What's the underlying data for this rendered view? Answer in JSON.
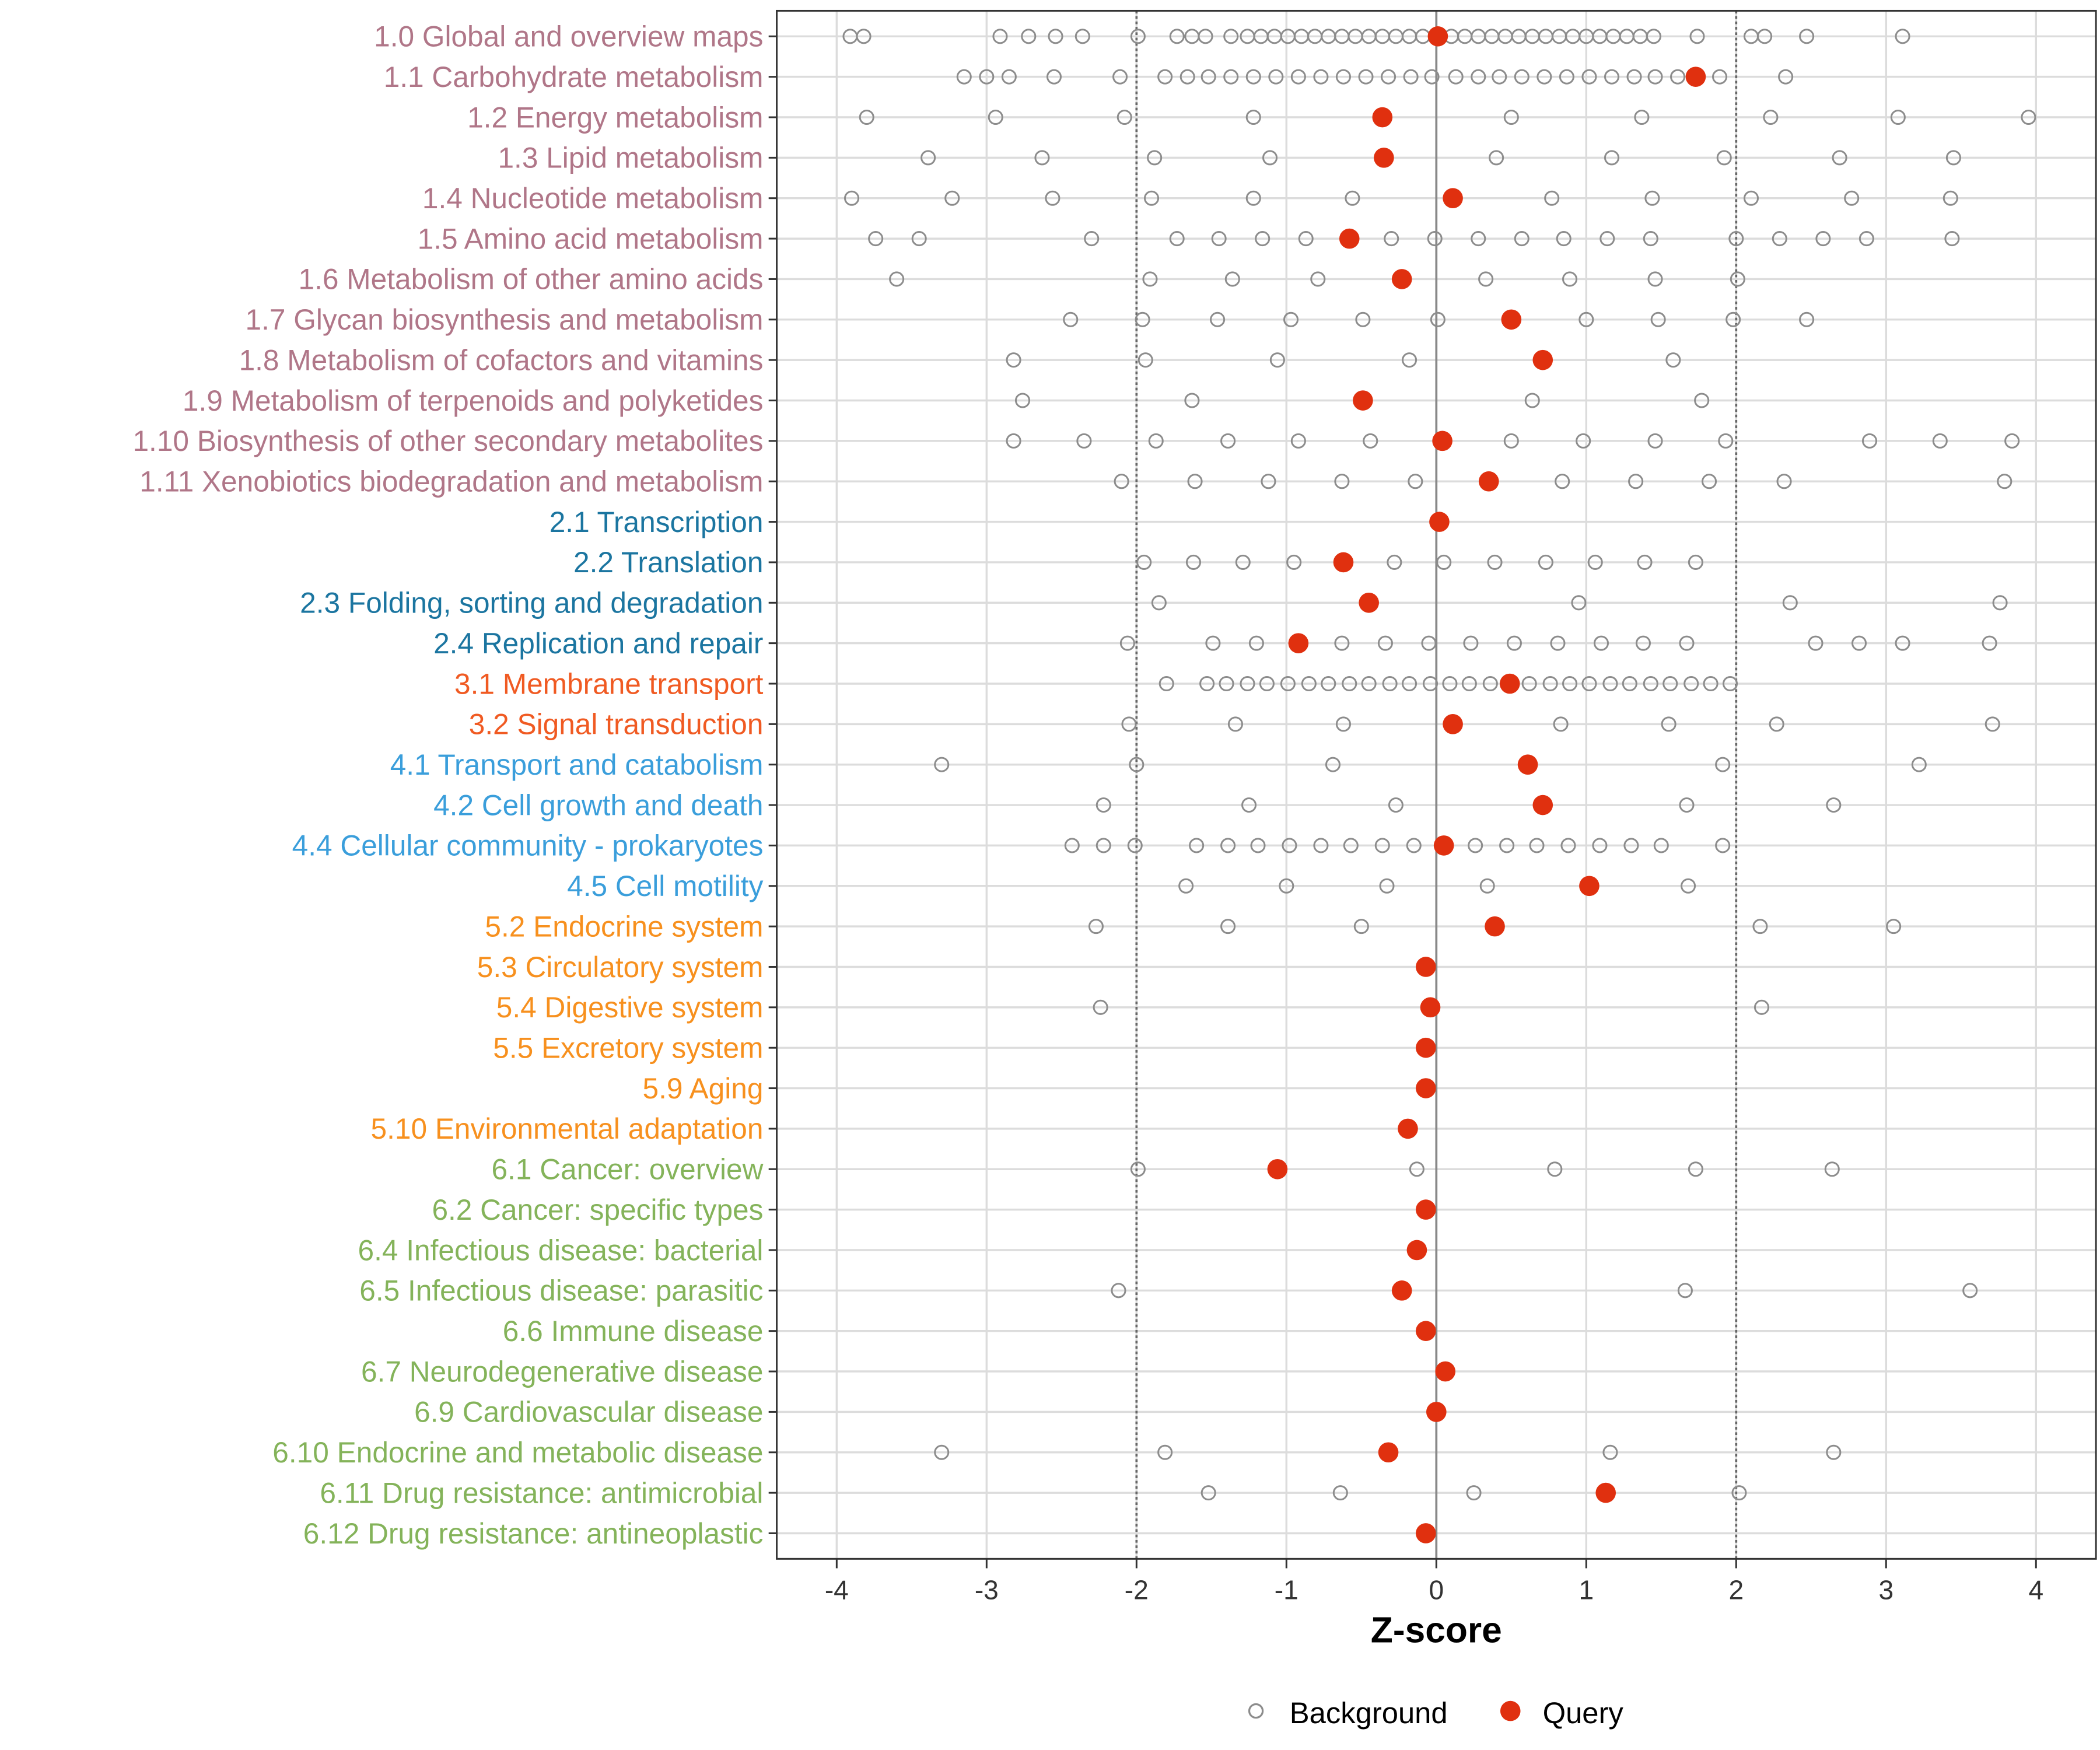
{
  "chart_data": {
    "type": "scatter",
    "title": "",
    "xlabel": "Z-score",
    "ylabel": "",
    "xlim": [
      -4.4,
      4.4
    ],
    "xticks": [
      -4,
      -3,
      -2,
      -1,
      0,
      1,
      2,
      3,
      4
    ],
    "xtick_labels": [
      "-4",
      "-3",
      "-2",
      "-1",
      "0",
      "1",
      "2",
      "3",
      "4"
    ],
    "reference_lines": {
      "dashed": [
        -2,
        2
      ],
      "solid": [
        0
      ]
    },
    "grid": true,
    "legend": {
      "placement": "bottom",
      "entries": [
        {
          "label": "Background",
          "marker": "open-circle",
          "color": "#8c8c8c"
        },
        {
          "label": "Query",
          "marker": "filled-circle",
          "color": "#e0300f"
        }
      ]
    },
    "group_colors": {
      "1": "#b07688",
      "2": "#1b75a0",
      "3": "#f05a22",
      "4": "#3a9edb",
      "5": "#f7901e",
      "6": "#84b35a"
    },
    "categories": [
      {
        "label": "1.0 Global and overview maps",
        "group": "1",
        "query": 0.01,
        "background": [
          -3.91,
          -3.82,
          -2.91,
          -2.72,
          -2.54,
          -2.36,
          -1.99,
          -1.73,
          -1.63,
          -1.54,
          -1.37,
          -1.26,
          -1.17,
          -1.08,
          -0.99,
          -0.9,
          -0.81,
          -0.72,
          -0.63,
          -0.54,
          -0.45,
          -0.36,
          -0.27,
          -0.18,
          -0.09,
          0.1,
          0.19,
          0.28,
          0.37,
          0.46,
          0.55,
          0.64,
          0.73,
          0.82,
          0.91,
          1.0,
          1.09,
          1.18,
          1.27,
          1.36,
          1.45,
          1.74,
          2.1,
          2.19,
          2.47,
          3.11
        ]
      },
      {
        "label": "1.1 Carbohydrate metabolism",
        "group": "1",
        "query": 1.73,
        "background": [
          -3.15,
          -3.0,
          -2.85,
          -2.55,
          -2.11,
          -1.81,
          -1.66,
          -1.52,
          -1.37,
          -1.22,
          -1.07,
          -0.92,
          -0.77,
          -0.62,
          -0.47,
          -0.32,
          -0.17,
          -0.03,
          0.13,
          0.28,
          0.42,
          0.57,
          0.72,
          0.87,
          1.02,
          1.17,
          1.32,
          1.46,
          1.61,
          1.89,
          2.33
        ]
      },
      {
        "label": "1.2 Energy metabolism",
        "group": "1",
        "query": -0.36,
        "background": [
          -3.8,
          -2.94,
          -2.08,
          -1.22,
          0.5,
          1.37,
          2.23,
          3.08,
          3.95
        ]
      },
      {
        "label": "1.3 Lipid metabolism",
        "group": "1",
        "query": -0.35,
        "background": [
          -3.39,
          -2.63,
          -1.88,
          -1.11,
          0.4,
          1.17,
          1.92,
          2.69,
          3.45
        ]
      },
      {
        "label": "1.4 Nucleotide metabolism",
        "group": "1",
        "query": 0.11,
        "background": [
          -3.9,
          -3.23,
          -2.56,
          -1.9,
          -1.22,
          -0.56,
          0.77,
          1.44,
          2.1,
          2.77,
          3.43
        ]
      },
      {
        "label": "1.5 Amino acid metabolism",
        "group": "1",
        "query": -0.58,
        "background": [
          -3.74,
          -3.45,
          -2.3,
          -1.73,
          -1.45,
          -1.16,
          -0.87,
          -0.3,
          -0.01,
          0.28,
          0.57,
          0.85,
          1.14,
          1.43,
          2.0,
          2.29,
          2.58,
          2.87,
          3.44
        ]
      },
      {
        "label": "1.6 Metabolism of other amino acids",
        "group": "1",
        "query": -0.23,
        "background": [
          -3.6,
          -1.91,
          -1.36,
          -0.79,
          0.33,
          0.89,
          1.46,
          2.01
        ]
      },
      {
        "label": "1.7 Glycan biosynthesis and metabolism",
        "group": "1",
        "query": 0.5,
        "background": [
          -2.44,
          -1.96,
          -1.46,
          -0.97,
          -0.49,
          0.01,
          1.0,
          1.48,
          1.98,
          2.47
        ]
      },
      {
        "label": "1.8 Metabolism of cofactors and vitamins",
        "group": "1",
        "query": 0.71,
        "background": [
          -2.82,
          -1.94,
          -1.06,
          -0.18,
          1.58
        ]
      },
      {
        "label": "1.9 Metabolism of terpenoids and polyketides",
        "group": "1",
        "query": -0.49,
        "background": [
          -2.76,
          -1.63,
          0.64,
          1.77
        ]
      },
      {
        "label": "1.10 Biosynthesis of other secondary metabolites",
        "group": "1",
        "query": 0.04,
        "background": [
          -2.82,
          -2.35,
          -1.87,
          -1.39,
          -0.92,
          -0.44,
          0.5,
          0.98,
          1.46,
          1.93,
          2.89,
          3.36,
          3.84
        ]
      },
      {
        "label": "1.11 Xenobiotics biodegradation and metabolism",
        "group": "1",
        "query": 0.35,
        "background": [
          -2.1,
          -1.61,
          -1.12,
          -0.63,
          -0.14,
          0.84,
          1.33,
          1.82,
          2.32,
          3.79
        ]
      },
      {
        "label": "2.1 Transcription",
        "group": "2",
        "query": 0.02,
        "background": []
      },
      {
        "label": "2.2 Translation",
        "group": "2",
        "query": -0.62,
        "background": [
          -1.95,
          -1.62,
          -1.29,
          -0.95,
          -0.28,
          0.05,
          0.39,
          0.73,
          1.06,
          1.39,
          1.73
        ]
      },
      {
        "label": "2.3 Folding, sorting and degradation",
        "group": "2",
        "query": -0.45,
        "background": [
          -1.85,
          0.95,
          2.36,
          3.76
        ]
      },
      {
        "label": "2.4 Replication and repair",
        "group": "2",
        "query": -0.92,
        "background": [
          -2.06,
          -1.49,
          -1.2,
          -0.63,
          -0.34,
          -0.05,
          0.23,
          0.52,
          0.81,
          1.1,
          1.38,
          1.67,
          2.53,
          2.82,
          3.11,
          3.69
        ]
      },
      {
        "label": "3.1 Membrane transport",
        "group": "3",
        "query": 0.49,
        "background": [
          -1.8,
          -1.53,
          -1.4,
          -1.26,
          -1.13,
          -0.99,
          -0.85,
          -0.72,
          -0.58,
          -0.45,
          -0.31,
          -0.18,
          -0.04,
          0.09,
          0.22,
          0.36,
          0.62,
          0.76,
          0.89,
          1.02,
          1.16,
          1.29,
          1.43,
          1.56,
          1.7,
          1.83,
          1.96
        ]
      },
      {
        "label": "3.2 Signal transduction",
        "group": "3",
        "query": 0.11,
        "background": [
          -2.05,
          -1.34,
          -0.62,
          0.83,
          1.55,
          2.27,
          3.71
        ]
      },
      {
        "label": "4.1 Transport and catabolism",
        "group": "4",
        "query": 0.61,
        "background": [
          -3.3,
          -2.0,
          -0.69,
          1.91,
          3.22
        ]
      },
      {
        "label": "4.2 Cell growth and death",
        "group": "4",
        "query": 0.71,
        "background": [
          -2.22,
          -1.25,
          -0.27,
          1.67,
          2.65
        ]
      },
      {
        "label": "4.4 Cellular community - prokaryotes",
        "group": "4",
        "query": 0.05,
        "background": [
          -2.43,
          -2.22,
          -2.01,
          -1.6,
          -1.39,
          -1.19,
          -0.98,
          -0.77,
          -0.57,
          -0.36,
          -0.15,
          0.26,
          0.47,
          0.67,
          0.88,
          1.09,
          1.3,
          1.5,
          1.91
        ]
      },
      {
        "label": "4.5 Cell motility",
        "group": "4",
        "query": 1.02,
        "background": [
          -1.67,
          -1.0,
          -0.33,
          0.34,
          1.68
        ]
      },
      {
        "label": "5.2 Endocrine system",
        "group": "5",
        "query": 0.39,
        "background": [
          -2.27,
          -1.39,
          -0.5,
          2.16,
          3.05
        ]
      },
      {
        "label": "5.3 Circulatory system",
        "group": "5",
        "query": -0.07,
        "background": []
      },
      {
        "label": "5.4 Digestive system",
        "group": "5",
        "query": -0.04,
        "background": [
          -2.24,
          2.17
        ]
      },
      {
        "label": "5.5 Excretory system",
        "group": "5",
        "query": -0.07,
        "background": []
      },
      {
        "label": "5.9 Aging",
        "group": "5",
        "query": -0.07,
        "background": []
      },
      {
        "label": "5.10 Environmental adaptation",
        "group": "5",
        "query": -0.19,
        "background": []
      },
      {
        "label": "6.1 Cancer: overview",
        "group": "6",
        "query": -1.06,
        "background": [
          -1.99,
          -0.13,
          0.79,
          1.73,
          2.64
        ]
      },
      {
        "label": "6.2 Cancer: specific types",
        "group": "6",
        "query": -0.07,
        "background": []
      },
      {
        "label": "6.4 Infectious disease: bacterial",
        "group": "6",
        "query": -0.13,
        "background": []
      },
      {
        "label": "6.5 Infectious disease: parasitic",
        "group": "6",
        "query": -0.23,
        "background": [
          -2.12,
          1.66,
          3.56
        ]
      },
      {
        "label": "6.6 Immune disease",
        "group": "6",
        "query": -0.07,
        "background": []
      },
      {
        "label": "6.7 Neurodegenerative disease",
        "group": "6",
        "query": 0.06,
        "background": []
      },
      {
        "label": "6.9 Cardiovascular disease",
        "group": "6",
        "query": 0.0,
        "background": []
      },
      {
        "label": "6.10 Endocrine and metabolic disease",
        "group": "6",
        "query": -0.32,
        "background": [
          -3.3,
          -1.81,
          1.16,
          2.65
        ]
      },
      {
        "label": "6.11 Drug resistance: antimicrobial",
        "group": "6",
        "query": 1.13,
        "background": [
          -1.52,
          -0.64,
          0.25,
          2.02
        ]
      },
      {
        "label": "6.12 Drug resistance: antineoplastic",
        "group": "6",
        "query": -0.07,
        "background": []
      }
    ]
  }
}
